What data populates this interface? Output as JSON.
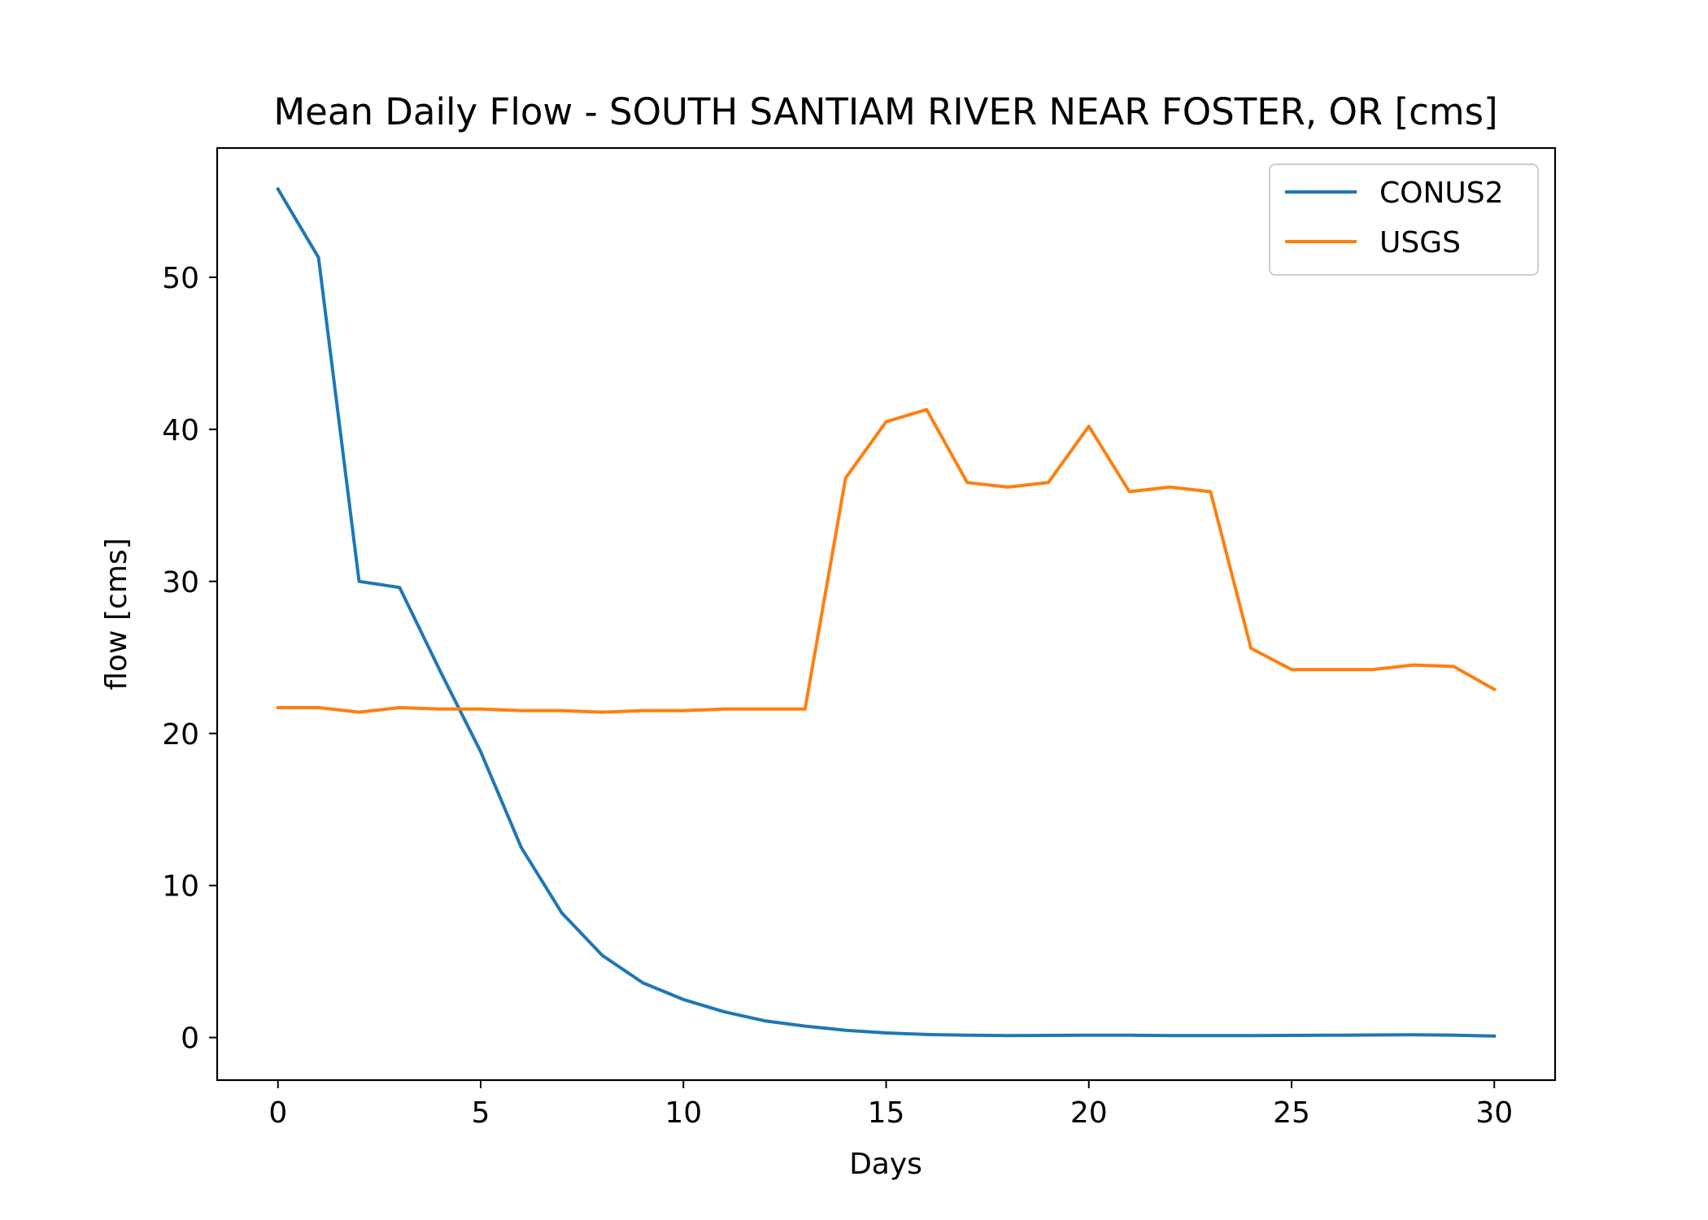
{
  "chart_data": {
    "type": "line",
    "title": "Mean Daily Flow - SOUTH SANTIAM RIVER NEAR FOSTER, OR [cms]",
    "xlabel": "Days",
    "ylabel": "flow [cms]",
    "xlim": [
      -1.5,
      31.5
    ],
    "ylim": [
      -2.8,
      58.5
    ],
    "xticks": [
      0,
      5,
      10,
      15,
      20,
      25,
      30
    ],
    "yticks": [
      0,
      10,
      20,
      30,
      40,
      50
    ],
    "grid": false,
    "legend_position": "top-right",
    "x": [
      0,
      1,
      2,
      3,
      4,
      5,
      6,
      7,
      8,
      9,
      10,
      11,
      12,
      13,
      14,
      15,
      16,
      17,
      18,
      19,
      20,
      21,
      22,
      23,
      24,
      25,
      26,
      27,
      28,
      29,
      30
    ],
    "series": [
      {
        "name": "CONUS2",
        "color": "#1f77b4",
        "values": [
          55.8,
          51.3,
          30.0,
          29.6,
          24.1,
          18.8,
          12.5,
          8.2,
          5.4,
          3.6,
          2.5,
          1.7,
          1.1,
          0.75,
          0.48,
          0.3,
          0.2,
          0.15,
          0.13,
          0.14,
          0.16,
          0.15,
          0.13,
          0.13,
          0.13,
          0.14,
          0.15,
          0.17,
          0.18,
          0.16,
          0.1
        ]
      },
      {
        "name": "USGS",
        "color": "#ff7f0e",
        "values": [
          21.7,
          21.7,
          21.4,
          21.7,
          21.6,
          21.6,
          21.5,
          21.5,
          21.4,
          21.5,
          21.5,
          21.6,
          21.6,
          21.6,
          36.8,
          40.5,
          41.3,
          36.5,
          36.2,
          36.5,
          40.2,
          35.9,
          36.2,
          35.9,
          25.6,
          24.2,
          24.2,
          24.2,
          24.5,
          24.4,
          22.9
        ]
      }
    ]
  }
}
